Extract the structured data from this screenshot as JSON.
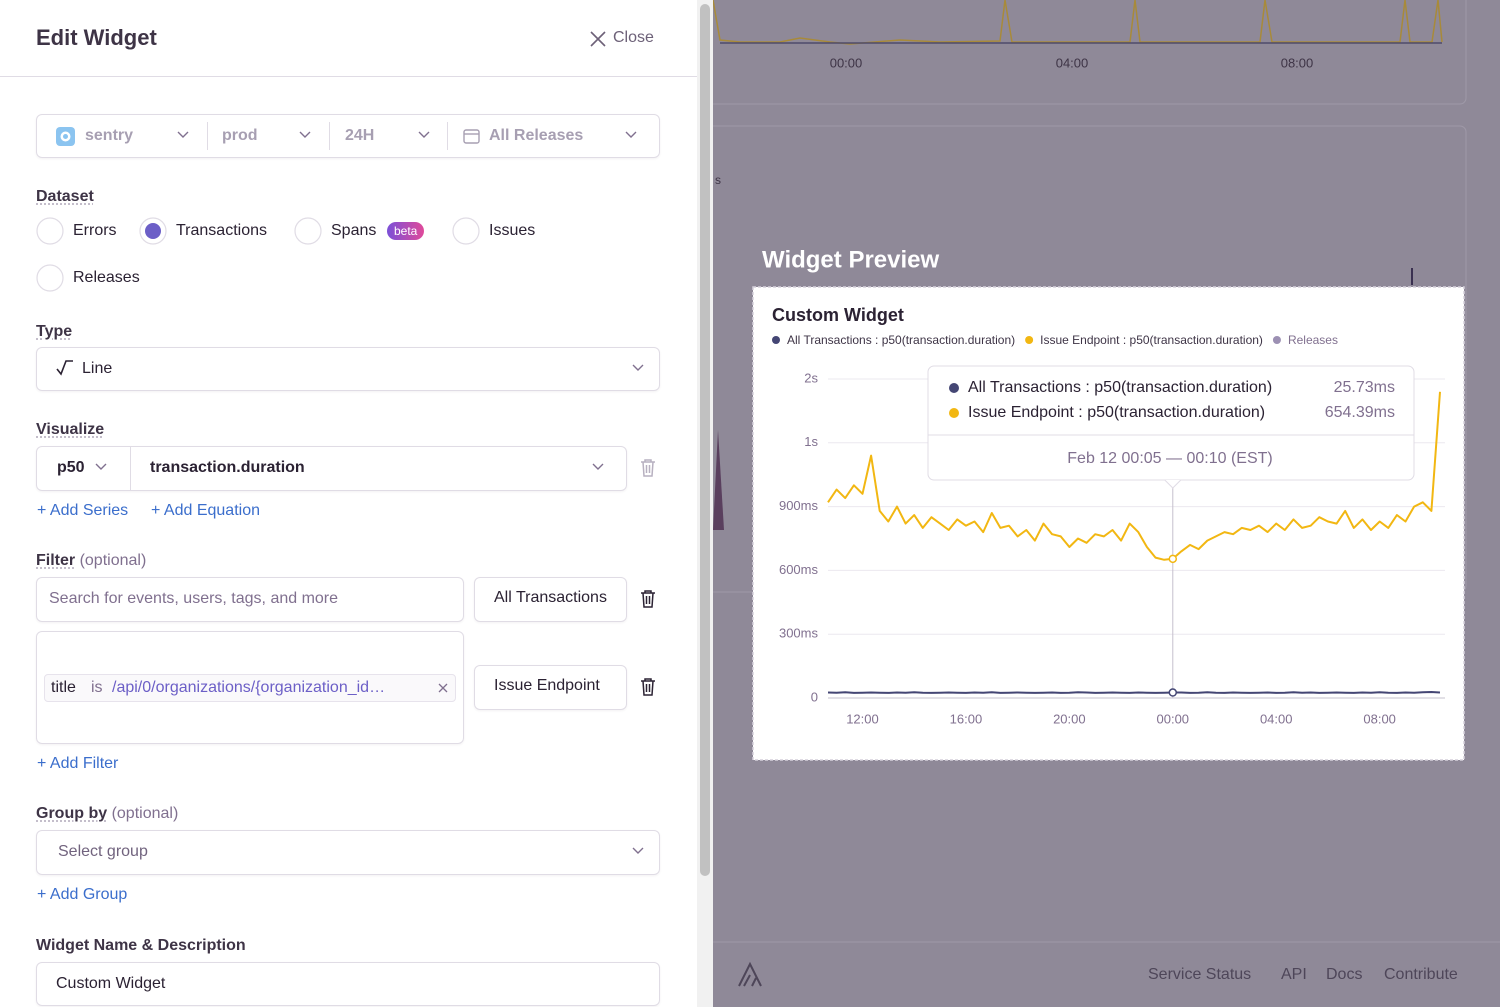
{
  "panel": {
    "title": "Edit Widget",
    "close": "Close"
  },
  "page_filters": {
    "project": "sentry",
    "environment": "prod",
    "period": "24H",
    "release": "All Releases"
  },
  "dataset": {
    "label": "Dataset",
    "options": [
      {
        "label": "Errors",
        "checked": false
      },
      {
        "label": "Transactions",
        "checked": true
      },
      {
        "label": "Spans",
        "checked": false,
        "badge": "beta"
      },
      {
        "label": "Issues",
        "checked": false
      },
      {
        "label": "Releases",
        "checked": false
      }
    ]
  },
  "type": {
    "label": "Type",
    "value": "Line"
  },
  "visualize": {
    "label": "Visualize",
    "aggregate": "p50",
    "field": "transaction.duration",
    "add_series": "+ Add Series",
    "add_equation": "+ Add Equation"
  },
  "filter": {
    "label": "Filter",
    "optional": "(optional)",
    "queries": [
      {
        "placeholder": "Search for events, users, tags, and more",
        "alias": "All Transactions"
      },
      {
        "token": {
          "key": "title",
          "operator": "is",
          "value": "/api/0/organizations/{organization_id…"
        },
        "alias": "Issue Endpoint"
      }
    ],
    "add": "+ Add Filter"
  },
  "group_by": {
    "label": "Group by",
    "optional": "(optional)",
    "placeholder": "Select group",
    "add": "+ Add Group"
  },
  "widget_name": {
    "label": "Widget Name & Description",
    "value": "Custom Widget"
  },
  "background": {
    "xticks": [
      "00:00",
      "04:00",
      "08:00"
    ],
    "fragment": "s"
  },
  "preview": {
    "heading": "Widget Preview"
  },
  "chart_data": {
    "type": "line",
    "title": "Custom Widget",
    "categories": [
      null,
      null,
      null,
      null,
      "12:00",
      null,
      null,
      null,
      null,
      null,
      null,
      null,
      null,
      null,
      null,
      null,
      "16:00",
      null,
      null,
      null,
      null,
      null,
      null,
      null,
      null,
      null,
      null,
      null,
      "20:00",
      null,
      null,
      null,
      null,
      null,
      null,
      null,
      null,
      null,
      null,
      null,
      "00:00",
      null,
      null,
      null,
      null,
      null,
      null,
      null,
      null,
      null,
      null,
      null,
      "04:00",
      null,
      null,
      null,
      null,
      null,
      null,
      null,
      null,
      null,
      null,
      null,
      "08:00",
      null,
      null,
      null,
      null,
      null,
      null,
      null
    ],
    "series": [
      {
        "name": "All Transactions : p50(transaction.duration)",
        "color": "#444674",
        "values": [
          26,
          25,
          27,
          24,
          25,
          26,
          25,
          24,
          26,
          25,
          27,
          25,
          24,
          25,
          26,
          25,
          24,
          26,
          25,
          27,
          24,
          25,
          26,
          25,
          24,
          25,
          26,
          24,
          25,
          27,
          26,
          24,
          25,
          26,
          25,
          24,
          26,
          25,
          24,
          25,
          25.73,
          26,
          24,
          25,
          27,
          25,
          24,
          26,
          25,
          24,
          25,
          26,
          24,
          25,
          27,
          25,
          26,
          24,
          25,
          26,
          25,
          24,
          26,
          25,
          27,
          25,
          24,
          26,
          25,
          27,
          28,
          26
        ],
        "value_labels": [
          null,
          null,
          null,
          null,
          null,
          null,
          null,
          null,
          null,
          null,
          null,
          null,
          null,
          null,
          null,
          null,
          null,
          null,
          null,
          null,
          null,
          null,
          null,
          null,
          null,
          null,
          null,
          null,
          null,
          null,
          null,
          null,
          null,
          null,
          null,
          null,
          null,
          null,
          null,
          null,
          "25.73ms",
          null,
          null,
          null,
          null,
          null,
          null,
          null,
          null,
          null,
          null,
          null,
          null,
          null,
          null,
          null,
          null,
          null,
          null,
          null,
          null,
          null,
          null,
          null,
          null,
          null,
          null,
          null,
          null,
          null,
          null,
          null
        ]
      },
      {
        "name": "Issue Endpoint : p50(transaction.duration)",
        "color": "#f2b712",
        "values": [
          920,
          980,
          940,
          1000,
          960,
          1140,
          880,
          830,
          900,
          820,
          860,
          800,
          850,
          820,
          790,
          840,
          810,
          830,
          780,
          870,
          800,
          810,
          760,
          790,
          740,
          820,
          770,
          760,
          710,
          750,
          730,
          770,
          760,
          790,
          740,
          820,
          780,
          710,
          660,
          650,
          654.39,
          690,
          720,
          700,
          740,
          760,
          780,
          770,
          800,
          790,
          810,
          780,
          820,
          790,
          840,
          800,
          810,
          850,
          830,
          820,
          880,
          800,
          840,
          790,
          830,
          800,
          860,
          830,
          900,
          920,
          880,
          1440
        ],
        "value_labels": [
          null,
          null,
          null,
          null,
          null,
          null,
          null,
          null,
          null,
          null,
          null,
          null,
          null,
          null,
          null,
          null,
          null,
          null,
          null,
          null,
          null,
          null,
          null,
          null,
          null,
          null,
          null,
          null,
          null,
          null,
          null,
          null,
          null,
          null,
          null,
          null,
          null,
          null,
          null,
          null,
          "654.39ms",
          null,
          null,
          null,
          null,
          null,
          null,
          null,
          null,
          null,
          null,
          null,
          null,
          null,
          null,
          null,
          null,
          null,
          null,
          null,
          null,
          null,
          null,
          null,
          null,
          null,
          null,
          null,
          null,
          null,
          null,
          null
        ]
      }
    ],
    "releases": {
      "name": "Releases",
      "color": "#9c90b3"
    },
    "ylim": [
      0,
      1500
    ],
    "yticks": [
      0,
      {
        "value": 300,
        "label": "300ms"
      },
      {
        "value": 600,
        "label": "600ms"
      },
      {
        "value": 900,
        "label": "900ms"
      },
      {
        "value": 1200,
        "label": "1s"
      },
      {
        "value": 1500,
        "label": "2s"
      }
    ],
    "grid": true,
    "tooltip": {
      "date": "Feb 12 00:05 — 00:10 (EST)"
    }
  },
  "footer": {
    "links": [
      "Service Status",
      "API",
      "Docs",
      "Contribute"
    ]
  }
}
